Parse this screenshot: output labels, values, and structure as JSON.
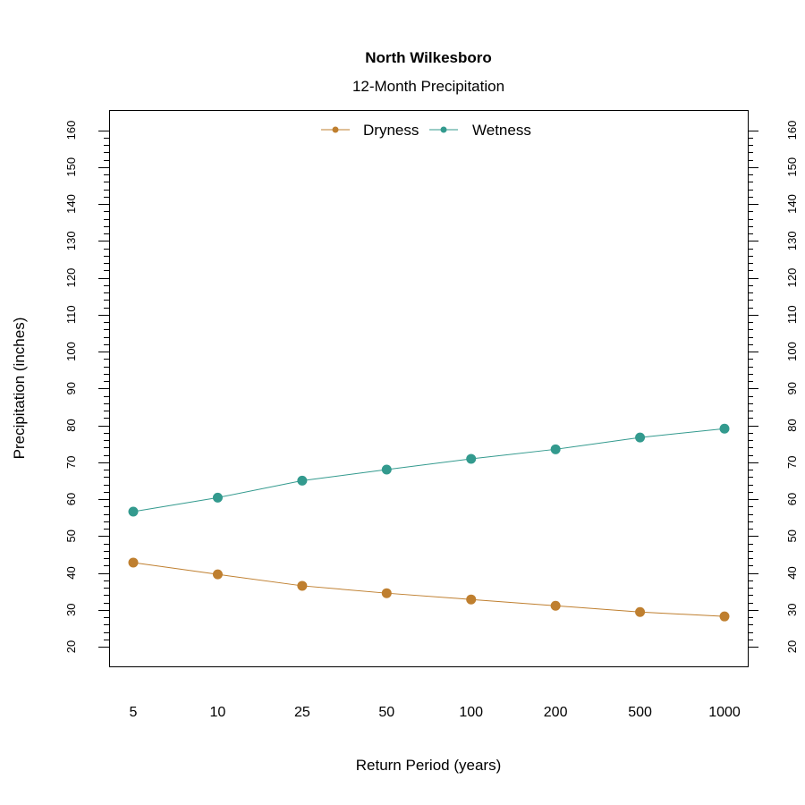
{
  "chart_data": {
    "type": "line",
    "title": "North Wilkesboro",
    "subtitle": "12-Month Precipitation",
    "xlabel": "Return Period (years)",
    "ylabel": "Precipitation (inches)",
    "categories": [
      "5",
      "10",
      "25",
      "50",
      "100",
      "200",
      "500",
      "1000"
    ],
    "ylim": [
      20,
      160
    ],
    "y_major_ticks": [
      20,
      30,
      40,
      50,
      60,
      70,
      80,
      90,
      100,
      110,
      120,
      130,
      140,
      150,
      160
    ],
    "y_minor_step": 2,
    "right_axis_mirrors_left": true,
    "grid": false,
    "legend": "top-center",
    "series": [
      {
        "name": "Dryness",
        "color": "#BF7F2F",
        "values": [
          42.8,
          39.6,
          36.5,
          34.5,
          32.8,
          31.1,
          29.4,
          28.2
        ]
      },
      {
        "name": "Wetness",
        "color": "#339A8E",
        "values": [
          56.6,
          60.4,
          65.0,
          68.0,
          70.9,
          73.5,
          76.7,
          79.1
        ]
      }
    ]
  }
}
